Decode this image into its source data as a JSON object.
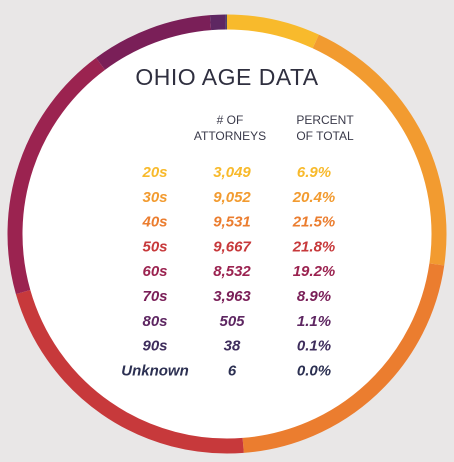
{
  "chart_data": {
    "type": "donut",
    "title": "OHIO AGE DATA",
    "columns": [
      [
        "# OF",
        "ATTORNEYS"
      ],
      [
        "PERCENT",
        "OF TOTAL"
      ]
    ],
    "categories": [
      "20s",
      "30s",
      "40s",
      "50s",
      "60s",
      "70s",
      "80s",
      "90s",
      "Unknown"
    ],
    "values": [
      3049,
      9052,
      9531,
      9667,
      8532,
      3963,
      505,
      38,
      6
    ],
    "value_labels": [
      "3,049",
      "9,052",
      "9,531",
      "9,667",
      "8,532",
      "3,963",
      "505",
      "38",
      "6"
    ],
    "percents": [
      6.9,
      20.4,
      21.5,
      21.8,
      19.2,
      8.9,
      1.1,
      0.1,
      0.0
    ],
    "percent_labels": [
      "6.9%",
      "20.4%",
      "21.5%",
      "21.8%",
      "19.2%",
      "8.9%",
      "1.1%",
      "0.1%",
      "0.0%"
    ],
    "colors": [
      "#f8ba2c",
      "#f29b30",
      "#eb7d2f",
      "#c7393b",
      "#9b2350",
      "#7a1f58",
      "#5e2762",
      "#3e2d5c",
      "#2c3052"
    ]
  }
}
